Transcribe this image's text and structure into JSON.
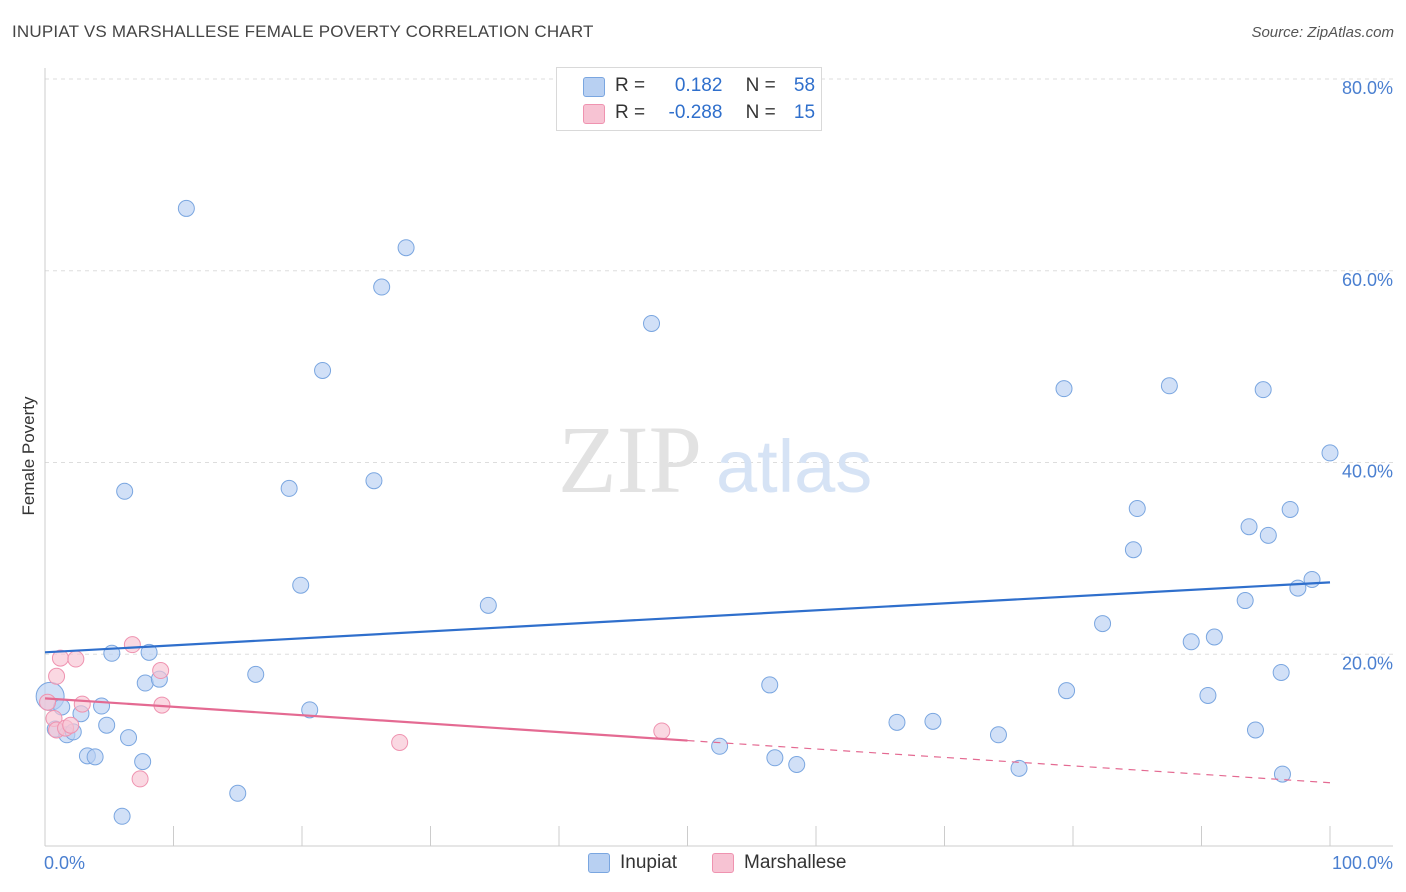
{
  "title": "INUPIAT VS MARSHALLESE FEMALE POVERTY CORRELATION CHART",
  "source": "Source: ZipAtlas.com",
  "watermark": {
    "zip": "ZIP",
    "atlas": "atlas"
  },
  "legend_top": [
    {
      "r_label": "R =",
      "r_value": "0.182",
      "n_label": "N =",
      "n_value": "58"
    },
    {
      "r_label": "R =",
      "r_value": "-0.288",
      "n_label": "N =",
      "n_value": "15"
    }
  ],
  "colors": {
    "inupiat_fill": "#b8d0f2",
    "inupiat_stroke": "#7aa6e0",
    "inupiat_line": "#2f6fcc",
    "marshallese_fill": "#f7c3d3",
    "marshallese_stroke": "#ef93b0",
    "marshallese_line": "#e46a92",
    "grid": "#dddddd",
    "axis_text": "#4a7fd0"
  },
  "chart_data": {
    "type": "scatter",
    "title": "INUPIAT VS MARSHALLESE FEMALE POVERTY CORRELATION CHART",
    "xlabel": "",
    "ylabel": "Female Poverty",
    "xlim": [
      0,
      100
    ],
    "ylim": [
      0,
      80
    ],
    "y_ticks": [
      {
        "value": 20,
        "label": "20.0%"
      },
      {
        "value": 40,
        "label": "40.0%"
      },
      {
        "value": 60,
        "label": "60.0%"
      },
      {
        "value": 80,
        "label": "80.0%"
      }
    ],
    "x_tick_labels": {
      "min": "0.0%",
      "max": "100.0%"
    },
    "series": [
      {
        "name": "Inupiat",
        "r": 0.182,
        "n": 58,
        "trend": {
          "x0": 0,
          "y0": 20.2,
          "x1": 100,
          "y1": 27.5
        },
        "points": [
          [
            0.4,
            15.6
          ],
          [
            0.8,
            12.2
          ],
          [
            1.3,
            14.5
          ],
          [
            1.7,
            11.6
          ],
          [
            2.2,
            11.9
          ],
          [
            2.8,
            13.8
          ],
          [
            3.3,
            9.4
          ],
          [
            3.9,
            9.3
          ],
          [
            4.4,
            14.6
          ],
          [
            4.8,
            12.6
          ],
          [
            5.2,
            20.1
          ],
          [
            6.0,
            3.1
          ],
          [
            6.2,
            37.0
          ],
          [
            6.5,
            11.3
          ],
          [
            7.6,
            8.8
          ],
          [
            7.8,
            17.0
          ],
          [
            8.1,
            20.2
          ],
          [
            8.9,
            17.4
          ],
          [
            11.0,
            66.5
          ],
          [
            15.0,
            5.5
          ],
          [
            16.4,
            17.9
          ],
          [
            19.0,
            37.3
          ],
          [
            19.9,
            27.2
          ],
          [
            20.6,
            14.2
          ],
          [
            21.6,
            49.6
          ],
          [
            25.6,
            38.1
          ],
          [
            26.2,
            58.3
          ],
          [
            28.1,
            62.4
          ],
          [
            34.5,
            25.1
          ],
          [
            47.2,
            54.5
          ],
          [
            52.5,
            10.4
          ],
          [
            56.4,
            16.8
          ],
          [
            56.8,
            9.2
          ],
          [
            58.5,
            8.5
          ],
          [
            66.3,
            12.9
          ],
          [
            69.1,
            13.0
          ],
          [
            74.2,
            11.6
          ],
          [
            75.8,
            8.1
          ],
          [
            79.3,
            47.7
          ],
          [
            79.5,
            16.2
          ],
          [
            82.3,
            23.2
          ],
          [
            84.7,
            30.9
          ],
          [
            85.0,
            35.2
          ],
          [
            87.5,
            48.0
          ],
          [
            89.2,
            21.3
          ],
          [
            90.5,
            15.7
          ],
          [
            91.0,
            21.8
          ],
          [
            93.4,
            25.6
          ],
          [
            93.7,
            33.3
          ],
          [
            94.2,
            12.1
          ],
          [
            94.8,
            47.6
          ],
          [
            95.2,
            32.4
          ],
          [
            96.2,
            18.1
          ],
          [
            96.3,
            7.5
          ],
          [
            96.9,
            35.1
          ],
          [
            97.5,
            26.9
          ],
          [
            98.6,
            27.8
          ],
          [
            100.0,
            41.0
          ]
        ]
      },
      {
        "name": "Marshallese",
        "r": -0.288,
        "n": 15,
        "trend": {
          "x0": 0,
          "y0": 15.4,
          "x1": 50,
          "y1": 11.0
        },
        "trend_extension": {
          "x0": 50,
          "y0": 11.0,
          "x1": 100,
          "y1": 6.6
        },
        "points": [
          [
            0.2,
            15.0
          ],
          [
            0.7,
            13.3
          ],
          [
            0.9,
            12.1
          ],
          [
            0.9,
            17.7
          ],
          [
            1.2,
            19.6
          ],
          [
            1.6,
            12.3
          ],
          [
            2.0,
            12.6
          ],
          [
            2.4,
            19.5
          ],
          [
            2.9,
            14.8
          ],
          [
            6.8,
            21.0
          ],
          [
            7.4,
            7.0
          ],
          [
            9.0,
            18.3
          ],
          [
            9.1,
            14.7
          ],
          [
            27.6,
            10.8
          ],
          [
            48.0,
            12.0
          ]
        ]
      }
    ]
  },
  "legend_bottom": [
    {
      "label": "Inupiat"
    },
    {
      "label": "Marshallese"
    }
  ]
}
